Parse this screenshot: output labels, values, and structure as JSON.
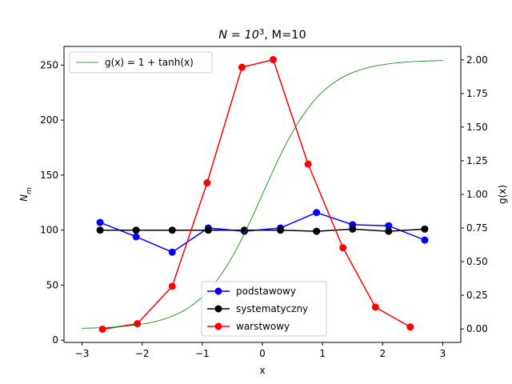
{
  "chart_data": {
    "type": "line",
    "title": {
      "prefix": "N = 10",
      "sup": "3",
      "suffix": ", M=10"
    },
    "xlabel": "x",
    "ylabel": {
      "base": "N",
      "sub": "m"
    },
    "y2label": "g(x)",
    "xlim": [
      -3.3,
      3.3
    ],
    "ylim": [
      -2,
      267
    ],
    "y2lim": [
      -0.1,
      2.1
    ],
    "xticks": [
      -3,
      -2,
      -1,
      0,
      1,
      2,
      3
    ],
    "xtick_labels": [
      "−3",
      "−2",
      "−1",
      "0",
      "1",
      "2",
      "3"
    ],
    "yticks": [
      0,
      50,
      100,
      150,
      200,
      250
    ],
    "ytick_labels": [
      "0",
      "50",
      "100",
      "150",
      "200",
      "250"
    ],
    "y2ticks": [
      0,
      0.25,
      0.5,
      0.75,
      1.0,
      1.25,
      1.5,
      1.75,
      2.0
    ],
    "y2tick_labels": [
      "0.00",
      "0.25",
      "0.50",
      "0.75",
      "1.00",
      "1.25",
      "1.50",
      "1.75",
      "2.00"
    ],
    "grid": false,
    "series": [
      {
        "name": "podstawowy",
        "color": "#0000ff",
        "axis": "left",
        "marker": "circle",
        "x": [
          -2.7,
          -2.1,
          -1.5,
          -0.9,
          -0.3,
          0.3,
          0.9,
          1.5,
          2.1,
          2.7
        ],
        "y": [
          107,
          94,
          80,
          102,
          99,
          102,
          116,
          105,
          104,
          91
        ]
      },
      {
        "name": "systematyczny",
        "color": "#000000",
        "axis": "left",
        "marker": "circle",
        "x": [
          -2.7,
          -2.1,
          -1.5,
          -0.9,
          -0.3,
          0.3,
          0.9,
          1.5,
          2.1,
          2.7
        ],
        "y": [
          100,
          100,
          100,
          100,
          100,
          100,
          99,
          101,
          99,
          101
        ]
      },
      {
        "name": "warstwowy",
        "color": "#ff0000",
        "axis": "left",
        "marker": "circle",
        "x": [
          -2.66,
          -2.08,
          -1.5,
          -0.92,
          -0.34,
          0.18,
          0.76,
          1.34,
          1.88,
          2.46
        ],
        "y": [
          10,
          15,
          49,
          143,
          248,
          255,
          160,
          84,
          30,
          12
        ]
      },
      {
        "name": "g(x) = 1 + tanh(x)",
        "color": "#008000",
        "axis": "right",
        "marker": "none",
        "function": "1 + tanh(x)",
        "x_range": [
          -3,
          3
        ]
      }
    ],
    "legends": [
      {
        "placement": "upper-left",
        "entries": [
          "g(x) = 1 + tanh(x)"
        ]
      },
      {
        "placement": "lower-center",
        "entries": [
          "podstawowy",
          "systematyczny",
          "warstwowy"
        ]
      }
    ]
  }
}
